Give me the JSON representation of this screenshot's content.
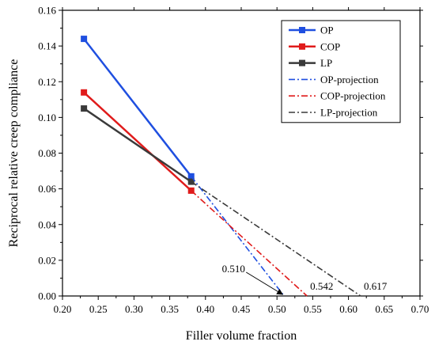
{
  "chart_data": {
    "type": "line",
    "xlabel": "Filler volume fraction",
    "ylabel": "Reciprocal relative creep compliance",
    "xlim": [
      0.2,
      0.7
    ],
    "ylim": [
      0.0,
      0.16
    ],
    "x_ticks": [
      "0.20",
      "0.25",
      "0.30",
      "0.35",
      "0.40",
      "0.45",
      "0.50",
      "0.55",
      "0.60",
      "0.65",
      "0.70"
    ],
    "y_ticks": [
      "0.00",
      "0.02",
      "0.04",
      "0.06",
      "0.08",
      "0.10",
      "0.12",
      "0.14",
      "0.16"
    ],
    "grid": false,
    "legend_position": "top-right",
    "series": [
      {
        "name": "OP",
        "color": "#1f4fe0",
        "style": "solid",
        "marker": "square",
        "x": [
          0.23,
          0.38
        ],
        "y": [
          0.144,
          0.067
        ]
      },
      {
        "name": "COP",
        "color": "#e01b1b",
        "style": "solid",
        "marker": "square",
        "x": [
          0.23,
          0.38
        ],
        "y": [
          0.114,
          0.059
        ]
      },
      {
        "name": "LP",
        "color": "#3a3a3a",
        "style": "solid",
        "marker": "square",
        "x": [
          0.23,
          0.38
        ],
        "y": [
          0.105,
          0.064
        ]
      },
      {
        "name": "OP-projection",
        "color": "#1f4fe0",
        "style": "dashdot",
        "marker": "none",
        "x": [
          0.38,
          0.51
        ],
        "y": [
          0.067,
          0.0
        ]
      },
      {
        "name": "COP-projection",
        "color": "#e01b1b",
        "style": "dashdot",
        "marker": "none",
        "x": [
          0.38,
          0.542
        ],
        "y": [
          0.059,
          0.0
        ]
      },
      {
        "name": "LP-projection",
        "color": "#3a3a3a",
        "style": "dashdot",
        "marker": "none",
        "x": [
          0.38,
          0.617
        ],
        "y": [
          0.064,
          0.0
        ]
      }
    ],
    "annotations": [
      {
        "text": "0.510",
        "x": 0.51,
        "y": 0.0,
        "arrow": true
      },
      {
        "text": "0.542",
        "x": 0.542,
        "y": 0.0,
        "arrow": false
      },
      {
        "text": "0.617",
        "x": 0.617,
        "y": 0.0,
        "arrow": false
      }
    ]
  }
}
